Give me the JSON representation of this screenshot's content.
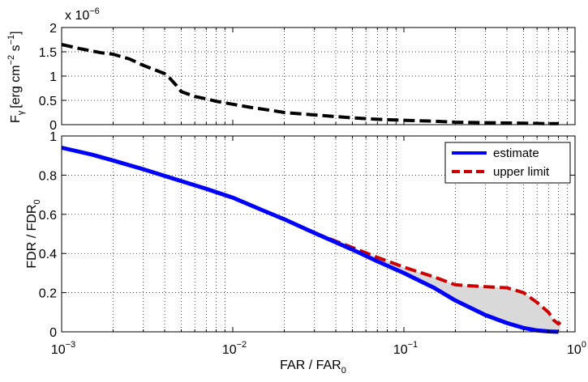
{
  "chart_data": [
    {
      "id": "top",
      "type": "line",
      "xscale": "log",
      "xlim": [
        0.001,
        1
      ],
      "ylim": [
        0,
        2
      ],
      "grid": true,
      "yscale_factor_label": {
        "base": "x 10",
        "exp": "−6"
      },
      "ylabel": {
        "main": "F",
        "sub": "γ",
        "units_prefix": "[erg cm",
        "units_exp1": "−2",
        "units_mid": " s",
        "units_exp2": "−1",
        "units_suffix": "]"
      },
      "yticks": [
        0,
        0.5,
        1,
        1.5,
        2
      ],
      "ytick_labels": [
        "0",
        "0.5",
        "1",
        "1.5",
        "2"
      ],
      "series": [
        {
          "color": "#000000",
          "style": "dashed",
          "x": [
            0.001,
            0.0013,
            0.0017,
            0.002,
            0.0025,
            0.003,
            0.0035,
            0.004,
            0.0043,
            0.0047,
            0.005,
            0.006,
            0.007,
            0.008,
            0.01,
            0.013,
            0.017,
            0.02,
            0.03,
            0.05,
            0.07,
            0.1,
            0.15,
            0.2,
            0.3,
            0.5,
            0.7,
            0.8
          ],
          "y": [
            1.65,
            1.56,
            1.48,
            1.45,
            1.35,
            1.22,
            1.13,
            1.05,
            0.95,
            0.8,
            0.68,
            0.58,
            0.53,
            0.48,
            0.42,
            0.35,
            0.29,
            0.25,
            0.2,
            0.14,
            0.11,
            0.09,
            0.07,
            0.05,
            0.04,
            0.03,
            0.02,
            0.02
          ]
        }
      ]
    },
    {
      "id": "bottom",
      "type": "line",
      "xscale": "log",
      "xlim": [
        0.001,
        1
      ],
      "ylim": [
        0,
        1
      ],
      "grid": true,
      "xlabel": {
        "main": "FAR / FAR",
        "sub": "0"
      },
      "ylabel": {
        "main": "FDR / FDR",
        "sub": "0"
      },
      "xticks": [
        0.001,
        0.01,
        0.1,
        1
      ],
      "xtick_labels": [
        {
          "base": "10",
          "exp": "−3"
        },
        {
          "base": "10",
          "exp": "−2"
        },
        {
          "base": "10",
          "exp": "−1"
        },
        {
          "base": "10",
          "exp": "0"
        }
      ],
      "yticks": [
        0,
        0.2,
        0.4,
        0.6,
        0.8,
        1
      ],
      "ytick_labels": [
        "0",
        "0.2",
        "0.4",
        "0.6",
        "0.8",
        "1"
      ],
      "legend": {
        "placement": "top-right"
      },
      "fill_between": {
        "color": "#d9d9d9",
        "between": [
          "estimate",
          "upper limit"
        ]
      },
      "series": [
        {
          "name": "estimate",
          "color": "#0000ff",
          "style": "solid",
          "x": [
            0.001,
            0.0015,
            0.002,
            0.003,
            0.005,
            0.007,
            0.01,
            0.015,
            0.02,
            0.03,
            0.05,
            0.07,
            0.1,
            0.15,
            0.2,
            0.3,
            0.4,
            0.5,
            0.6,
            0.7,
            0.8
          ],
          "y": [
            0.94,
            0.905,
            0.875,
            0.83,
            0.77,
            0.73,
            0.685,
            0.62,
            0.575,
            0.505,
            0.42,
            0.36,
            0.3,
            0.225,
            0.16,
            0.085,
            0.045,
            0.02,
            0.007,
            0.002,
            0.0
          ]
        },
        {
          "name": "upper limit",
          "color": "#cc0000",
          "style": "dashed",
          "x": [
            0.03,
            0.05,
            0.07,
            0.1,
            0.15,
            0.2,
            0.3,
            0.4,
            0.5,
            0.6,
            0.7,
            0.75,
            0.8,
            0.82
          ],
          "y": [
            0.505,
            0.43,
            0.38,
            0.33,
            0.28,
            0.24,
            0.23,
            0.225,
            0.2,
            0.15,
            0.1,
            0.06,
            0.04,
            0.05
          ]
        }
      ]
    }
  ]
}
